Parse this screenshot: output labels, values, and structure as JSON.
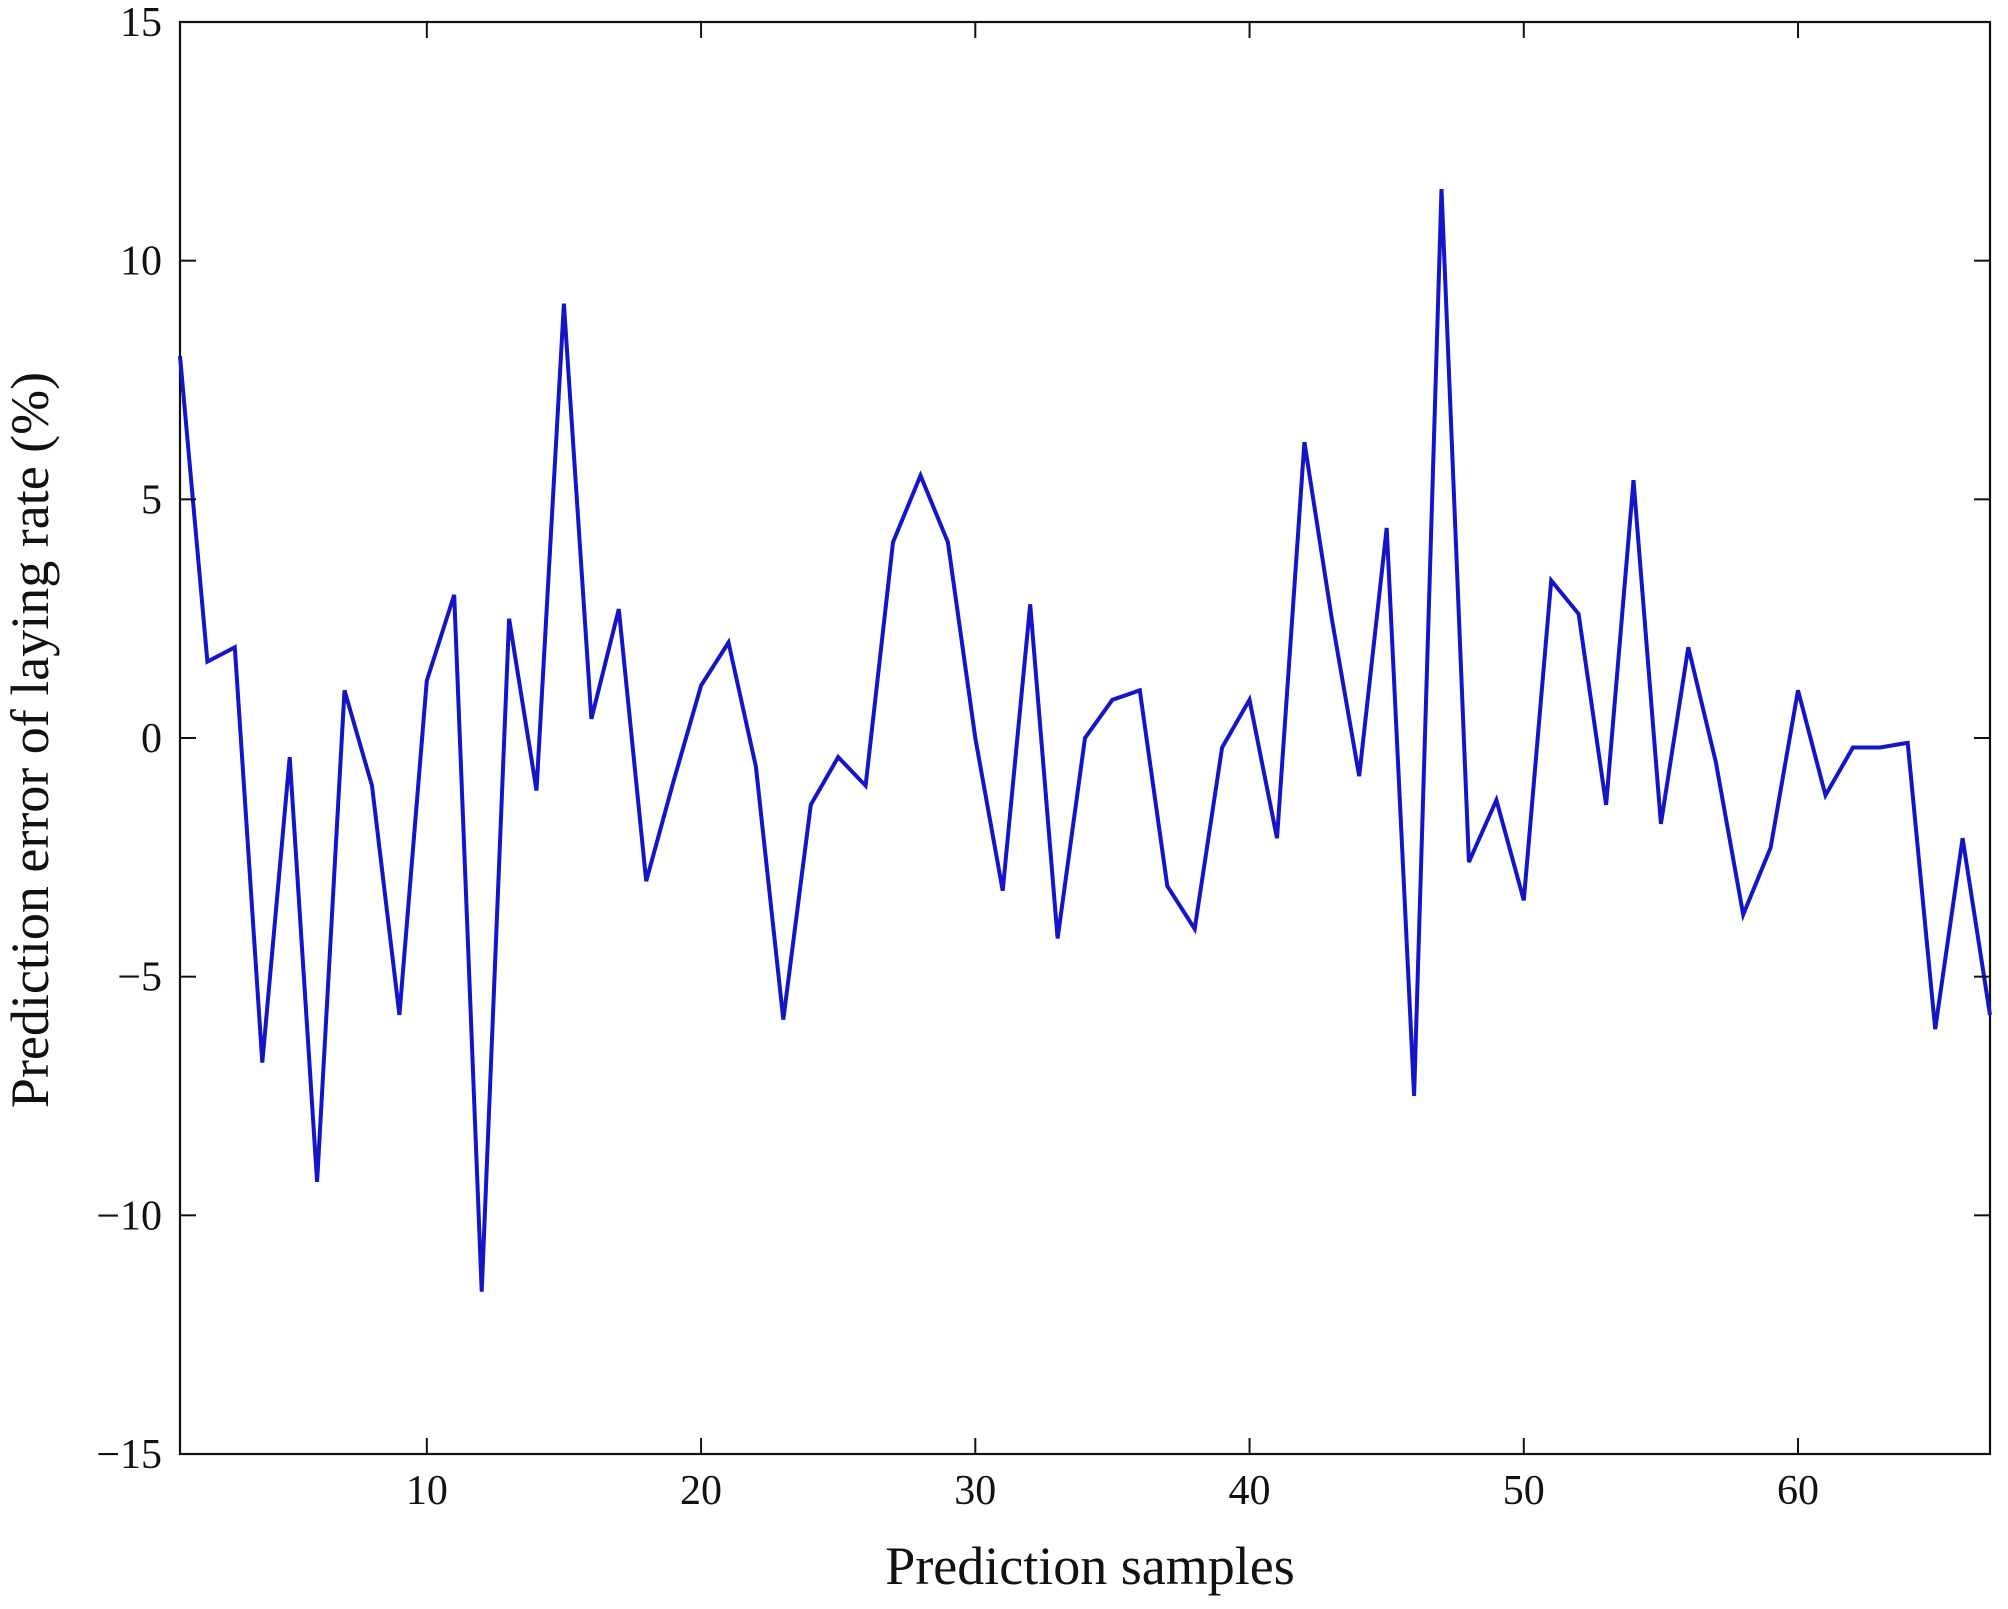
{
  "chart_data": {
    "type": "line",
    "title": "",
    "xlabel": "Prediction samples",
    "ylabel": "Prediction error of laying rate (%)",
    "xlim": [
      1,
      67
    ],
    "ylim": [
      -15,
      15
    ],
    "x_ticks": [
      10,
      20,
      30,
      40,
      50,
      60
    ],
    "x_tick_labels": [
      "10",
      "20",
      "30",
      "40",
      "50",
      "60"
    ],
    "y_ticks": [
      -15,
      -10,
      -5,
      0,
      5,
      10,
      15
    ],
    "y_tick_labels": [
      "−15",
      "−10",
      "−5",
      "0",
      "5",
      "10",
      "15"
    ],
    "grid": false,
    "line_color": "#1414c8",
    "series": [
      {
        "x": [
          1,
          2,
          3,
          4,
          5,
          6,
          7,
          8,
          9,
          10,
          11,
          12,
          13,
          14,
          15,
          16,
          17,
          18,
          19,
          20,
          21,
          22,
          23,
          24,
          25,
          26,
          27,
          28,
          29,
          30,
          31,
          32,
          33,
          34,
          35,
          36,
          37,
          38,
          39,
          40,
          41,
          42,
          43,
          44,
          45,
          46,
          47,
          48,
          49,
          50,
          51,
          52,
          53,
          54,
          55,
          56,
          57,
          58,
          59,
          60,
          61,
          62,
          63,
          64,
          65,
          66,
          67
        ],
        "values": [
          8.0,
          1.6,
          1.9,
          -6.8,
          -0.4,
          -9.3,
          1.0,
          -1.0,
          -5.8,
          1.2,
          3.0,
          -11.6,
          2.5,
          -1.1,
          9.1,
          0.4,
          2.7,
          -3.0,
          -0.9,
          1.1,
          2.0,
          -0.6,
          -5.9,
          -1.4,
          -0.4,
          -1.0,
          4.1,
          5.5,
          4.1,
          0.0,
          -3.2,
          2.8,
          -4.2,
          0.0,
          0.8,
          1.0,
          -3.1,
          -4.0,
          -0.2,
          0.8,
          -2.1,
          6.2,
          2.5,
          -0.8,
          4.4,
          -7.5,
          11.5,
          -2.6,
          -1.3,
          -3.4,
          3.3,
          2.6,
          -1.4,
          5.4,
          -1.8,
          1.9,
          -0.5,
          -3.7,
          -2.3,
          1.0,
          -1.2,
          -0.2,
          -0.2,
          -0.1,
          -6.1,
          -2.1,
          -5.8
        ]
      }
    ]
  }
}
